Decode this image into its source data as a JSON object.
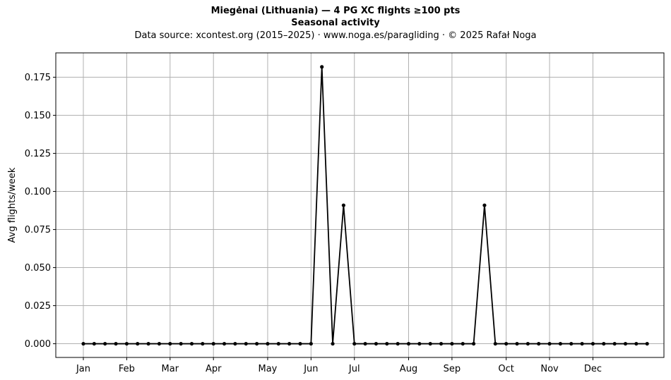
{
  "chart_data": {
    "type": "line",
    "title": "Miegėnai (Lithuania)  —  4 PG XC flights ≥100 pts",
    "subtitle": "Seasonal activity",
    "source_note": "Data source: xcontest.org (2015–2025)  ·  www.noga.es/paragliding  ·  © 2025 Rafał Noga",
    "xlabel": "",
    "ylabel": "Avg flights/week",
    "ylim": [
      -0.009,
      0.191
    ],
    "grid": true,
    "line_color": "#000000",
    "grid_color": "#b0b0b0",
    "x_ticks": [
      {
        "label": "Jan",
        "week": 0
      },
      {
        "label": "Feb",
        "week": 4
      },
      {
        "label": "Mar",
        "week": 8
      },
      {
        "label": "Apr",
        "week": 12
      },
      {
        "label": "May",
        "week": 17
      },
      {
        "label": "Jun",
        "week": 21
      },
      {
        "label": "Jul",
        "week": 25
      },
      {
        "label": "Aug",
        "week": 30
      },
      {
        "label": "Sep",
        "week": 34
      },
      {
        "label": "Oct",
        "week": 39
      },
      {
        "label": "Nov",
        "week": 43
      },
      {
        "label": "Dec",
        "week": 47
      }
    ],
    "y_ticks": [
      "0.000",
      "0.025",
      "0.050",
      "0.075",
      "0.100",
      "0.125",
      "0.150",
      "0.175"
    ],
    "series": [
      {
        "values": [
          0,
          0,
          0,
          0,
          0,
          0,
          0,
          0,
          0,
          0,
          0,
          0,
          0,
          0,
          0,
          0,
          0,
          0,
          0,
          0,
          0,
          0,
          0.1818,
          0,
          0.0909,
          0,
          0,
          0,
          0,
          0,
          0,
          0,
          0,
          0,
          0,
          0,
          0,
          0.0909,
          0,
          0,
          0,
          0,
          0,
          0,
          0,
          0,
          0,
          0,
          0,
          0,
          0,
          0,
          0
        ]
      }
    ]
  }
}
